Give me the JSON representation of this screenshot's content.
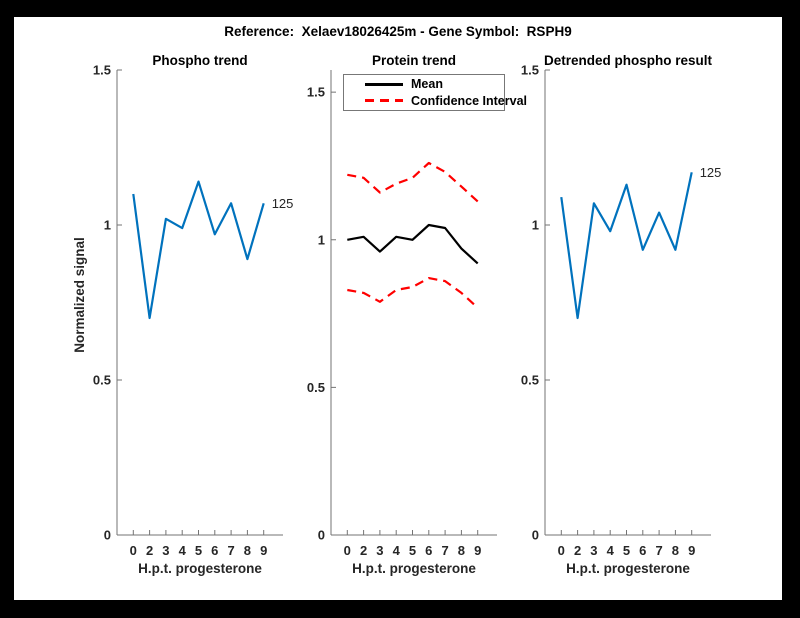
{
  "figure": {
    "title": "Reference:  Xelaev18026425m - Gene Symbol:  RSPH9",
    "background": "#ffffff",
    "frame_color": "#000000"
  },
  "colors": {
    "matlab_blue": "#0072BD",
    "red": "#FF0000",
    "black": "#000000",
    "axis_line": "#737373",
    "text": "#262626"
  },
  "chart_data": [
    {
      "type": "line",
      "title": "Phospho trend",
      "xlabel": "H.p.t. progesterone",
      "ylabel": "Normalized signal",
      "x_ticklabels": [
        "0",
        "2",
        "3",
        "4",
        "5",
        "6",
        "7",
        "8",
        "9"
      ],
      "ylim": [
        0,
        1.5
      ],
      "yticks": [
        0,
        0.5,
        1,
        1.5
      ],
      "ytick_labels": [
        "0",
        "0.5",
        "1",
        "1.5"
      ],
      "grid": false,
      "end_label": "125",
      "series": [
        {
          "name": "125",
          "color": "#0072BD",
          "style": "solid",
          "values": [
            1.1,
            0.7,
            1.02,
            0.99,
            1.14,
            0.97,
            1.07,
            0.89,
            1.07
          ]
        }
      ]
    },
    {
      "type": "line",
      "title": "Protein trend",
      "xlabel": "H.p.t. progesterone",
      "ylabel": "",
      "x_ticklabels": [
        "0",
        "2",
        "3",
        "4",
        "5",
        "6",
        "7",
        "8",
        "9"
      ],
      "ylim": [
        0,
        1.575
      ],
      "yticks": [
        0,
        0.5,
        1,
        1.5
      ],
      "ytick_labels": [
        "0",
        "0.5",
        "1",
        "1.5"
      ],
      "grid": false,
      "legend": {
        "position": "northwest",
        "entries": [
          {
            "label": "Mean",
            "style": "solid",
            "color": "#000000"
          },
          {
            "label": "Confidence Interval",
            "style": "dashed",
            "color": "#FF0000"
          }
        ]
      },
      "series": [
        {
          "name": "Mean",
          "color": "#000000",
          "style": "solid",
          "values": [
            1.0,
            1.01,
            0.96,
            1.01,
            1.0,
            1.05,
            1.04,
            0.97,
            0.92
          ]
        },
        {
          "name": "Confidence Interval",
          "color": "#FF0000",
          "style": "dashed",
          "values": [
            1.22,
            1.21,
            1.16,
            1.19,
            1.21,
            1.26,
            1.23,
            1.18,
            1.13
          ]
        },
        {
          "name": "Confidence Interval",
          "color": "#FF0000",
          "style": "dashed",
          "values": [
            0.83,
            0.82,
            0.79,
            0.83,
            0.84,
            0.87,
            0.86,
            0.82,
            0.77
          ]
        }
      ]
    },
    {
      "type": "line",
      "title": "Detrended phospho result",
      "xlabel": "H.p.t. progesterone",
      "ylabel": "",
      "x_ticklabels": [
        "0",
        "2",
        "3",
        "4",
        "5",
        "6",
        "7",
        "8",
        "9"
      ],
      "ylim": [
        0,
        1.5
      ],
      "yticks": [
        0,
        0.5,
        1,
        1.5
      ],
      "ytick_labels": [
        "0",
        "0.5",
        "1",
        "1.5"
      ],
      "grid": false,
      "end_label": "125",
      "series": [
        {
          "name": "125",
          "color": "#0072BD",
          "style": "solid",
          "values": [
            1.09,
            0.7,
            1.07,
            0.98,
            1.13,
            0.92,
            1.04,
            0.92,
            1.17
          ]
        }
      ]
    }
  ]
}
